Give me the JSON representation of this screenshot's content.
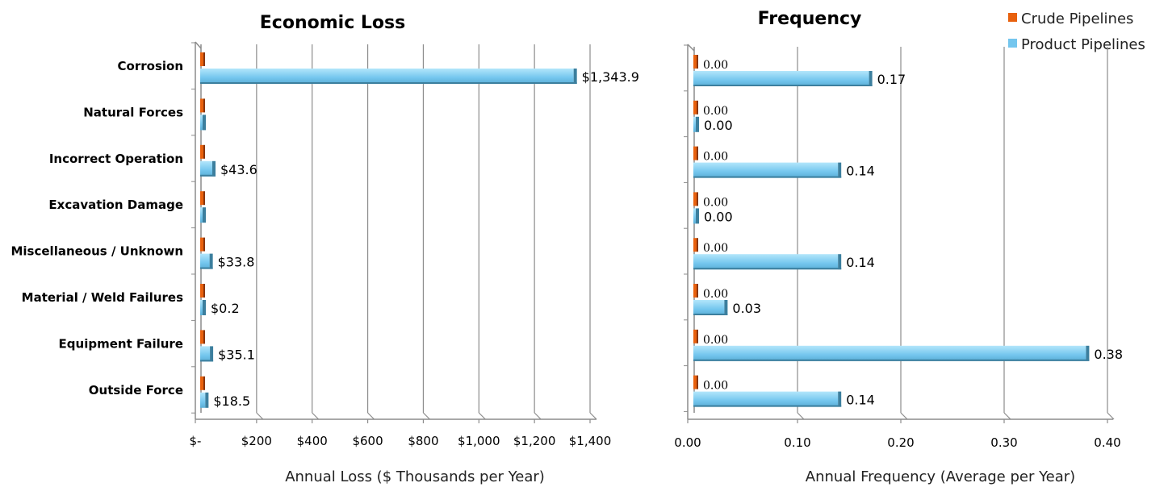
{
  "chart_data": [
    {
      "type": "bar",
      "orientation": "horizontal",
      "title": "Economic Loss",
      "xlabel": "Annual Loss ($ Thousands per Year)",
      "ylabel": "",
      "xlim": [
        0,
        1400
      ],
      "xticks": [
        "$-",
        "$200",
        "$400",
        "$600",
        "$800",
        "$1,000",
        "$1,200",
        "$1,400"
      ],
      "grid": true,
      "categories": [
        "Corrosion",
        "Natural Forces",
        "Incorrect Operation",
        "Excavation Damage",
        "Miscellaneous / Unknown",
        "Material / Weld Failures",
        "Equipment Failure",
        "Outside Force"
      ],
      "series": [
        {
          "name": "Crude Pipelines",
          "values": [
            0,
            0,
            0,
            0,
            0,
            0,
            0,
            0
          ],
          "labels": [
            "",
            "",
            "",
            "",
            "",
            "",
            "",
            ""
          ]
        },
        {
          "name": "Product Pipelines",
          "values": [
            1343.9,
            0,
            43.6,
            0,
            33.8,
            0.2,
            35.1,
            18.5
          ],
          "labels": [
            "$1,343.9",
            "",
            "$43.6",
            "",
            "$33.8",
            "$0.2",
            "$35.1",
            "$18.5"
          ]
        }
      ]
    },
    {
      "type": "bar",
      "orientation": "horizontal",
      "title": "Frequency",
      "xlabel": "Annual Frequency (Average per Year)",
      "ylabel": "",
      "xlim": [
        0,
        0.4
      ],
      "xticks": [
        "0.00",
        "0.10",
        "0.20",
        "0.30",
        "0.40"
      ],
      "grid": true,
      "categories": [
        "Corrosion",
        "Natural Forces",
        "Incorrect Operation",
        "Excavation Damage",
        "Miscellaneous / Unknown",
        "Material / Weld Failures",
        "Equipment Failure",
        "Outside Force"
      ],
      "series": [
        {
          "name": "Crude Pipelines",
          "values": [
            0,
            0,
            0,
            0,
            0,
            0,
            0,
            0
          ],
          "labels": [
            "0.00",
            "0.00",
            "0.00",
            "0.00",
            "0.00",
            "0.00",
            "0.00",
            "0.00"
          ]
        },
        {
          "name": "Product Pipelines",
          "values": [
            0.17,
            0,
            0.14,
            0,
            0.14,
            0.03,
            0.38,
            0.14
          ],
          "labels": [
            "0.17",
            "0.00",
            "0.14",
            "0.00",
            "0.14",
            "0.03",
            "0.38",
            "0.14"
          ]
        }
      ]
    }
  ],
  "legend": {
    "placement": "top-right",
    "items": [
      {
        "label": "Crude Pipelines",
        "color": "#E8610E"
      },
      {
        "label": "Product Pipelines",
        "color": "#74C6EE"
      }
    ]
  },
  "colors": {
    "crude": "#E8610E",
    "crude_dark": "#8A3508",
    "product_light": "#9EDCF8",
    "product": "#74C6EE",
    "product_dark": "#3C7F9E",
    "grid": "#8c8c8c"
  }
}
